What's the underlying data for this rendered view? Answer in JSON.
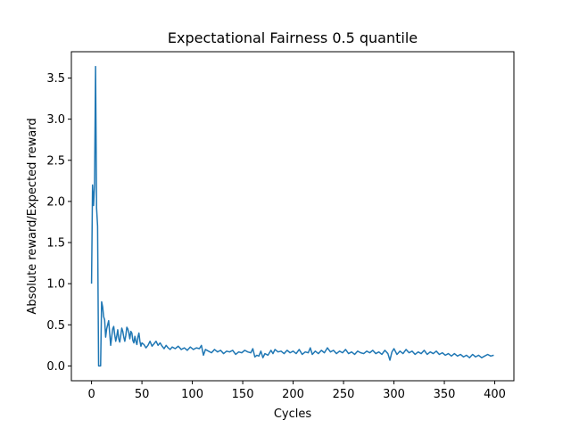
{
  "chart_data": {
    "type": "line",
    "title": "Expectational Fairness 0.5 quantile",
    "xlabel": "Cycles",
    "ylabel": "Absolute reward/Expected reward",
    "xlim": [
      -20,
      419
    ],
    "ylim": [
      -0.18,
      3.82
    ],
    "xticks": [
      0,
      50,
      100,
      150,
      200,
      250,
      300,
      350,
      400
    ],
    "yticks": [
      0.0,
      0.5,
      1.0,
      1.5,
      2.0,
      2.5,
      3.0,
      3.5
    ],
    "grid": false,
    "series_color": "#1f77b4",
    "series": [
      {
        "values": [
          [
            0,
            1.0
          ],
          [
            1,
            2.2
          ],
          [
            2,
            1.95
          ],
          [
            3,
            2.2
          ],
          [
            4,
            3.64
          ],
          [
            5,
            1.92
          ],
          [
            6,
            1.7
          ],
          [
            7,
            0.0
          ],
          [
            8,
            0.0
          ],
          [
            9,
            0.0
          ],
          [
            10,
            0.78
          ],
          [
            11,
            0.72
          ],
          [
            12,
            0.6
          ],
          [
            13,
            0.56
          ],
          [
            14,
            0.35
          ],
          [
            15,
            0.45
          ],
          [
            16,
            0.5
          ],
          [
            17,
            0.55
          ],
          [
            18,
            0.4
          ],
          [
            19,
            0.25
          ],
          [
            20,
            0.35
          ],
          [
            21,
            0.45
          ],
          [
            22,
            0.48
          ],
          [
            23,
            0.38
          ],
          [
            24,
            0.3
          ],
          [
            25,
            0.36
          ],
          [
            26,
            0.44
          ],
          [
            27,
            0.33
          ],
          [
            28,
            0.29
          ],
          [
            29,
            0.37
          ],
          [
            30,
            0.46
          ],
          [
            31,
            0.42
          ],
          [
            32,
            0.35
          ],
          [
            33,
            0.3
          ],
          [
            34,
            0.37
          ],
          [
            35,
            0.47
          ],
          [
            36,
            0.45
          ],
          [
            37,
            0.4
          ],
          [
            38,
            0.33
          ],
          [
            39,
            0.42
          ],
          [
            40,
            0.4
          ],
          [
            41,
            0.31
          ],
          [
            42,
            0.28
          ],
          [
            43,
            0.36
          ],
          [
            44,
            0.3
          ],
          [
            45,
            0.26
          ],
          [
            46,
            0.35
          ],
          [
            47,
            0.4
          ],
          [
            48,
            0.3
          ],
          [
            49,
            0.24
          ],
          [
            50,
            0.28
          ],
          [
            52,
            0.26
          ],
          [
            54,
            0.22
          ],
          [
            56,
            0.25
          ],
          [
            58,
            0.3
          ],
          [
            60,
            0.24
          ],
          [
            62,
            0.27
          ],
          [
            64,
            0.3
          ],
          [
            66,
            0.25
          ],
          [
            68,
            0.28
          ],
          [
            70,
            0.24
          ],
          [
            72,
            0.21
          ],
          [
            74,
            0.25
          ],
          [
            76,
            0.22
          ],
          [
            78,
            0.2
          ],
          [
            80,
            0.23
          ],
          [
            83,
            0.21
          ],
          [
            86,
            0.24
          ],
          [
            89,
            0.2
          ],
          [
            92,
            0.22
          ],
          [
            95,
            0.19
          ],
          [
            98,
            0.23
          ],
          [
            101,
            0.2
          ],
          [
            104,
            0.22
          ],
          [
            107,
            0.21
          ],
          [
            109,
            0.25
          ],
          [
            111,
            0.13
          ],
          [
            113,
            0.2
          ],
          [
            116,
            0.18
          ],
          [
            119,
            0.16
          ],
          [
            122,
            0.2
          ],
          [
            125,
            0.17
          ],
          [
            128,
            0.19
          ],
          [
            131,
            0.15
          ],
          [
            134,
            0.18
          ],
          [
            137,
            0.17
          ],
          [
            140,
            0.19
          ],
          [
            143,
            0.14
          ],
          [
            146,
            0.17
          ],
          [
            149,
            0.16
          ],
          [
            152,
            0.19
          ],
          [
            155,
            0.17
          ],
          [
            158,
            0.16
          ],
          [
            160,
            0.21
          ],
          [
            162,
            0.11
          ],
          [
            164,
            0.13
          ],
          [
            166,
            0.12
          ],
          [
            168,
            0.18
          ],
          [
            170,
            0.1
          ],
          [
            172,
            0.15
          ],
          [
            175,
            0.13
          ],
          [
            178,
            0.19
          ],
          [
            180,
            0.15
          ],
          [
            182,
            0.2
          ],
          [
            185,
            0.17
          ],
          [
            188,
            0.18
          ],
          [
            191,
            0.15
          ],
          [
            194,
            0.19
          ],
          [
            197,
            0.16
          ],
          [
            200,
            0.18
          ],
          [
            203,
            0.15
          ],
          [
            206,
            0.2
          ],
          [
            209,
            0.14
          ],
          [
            212,
            0.17
          ],
          [
            215,
            0.16
          ],
          [
            217,
            0.22
          ],
          [
            219,
            0.14
          ],
          [
            222,
            0.18
          ],
          [
            225,
            0.15
          ],
          [
            228,
            0.19
          ],
          [
            231,
            0.16
          ],
          [
            234,
            0.22
          ],
          [
            237,
            0.17
          ],
          [
            240,
            0.19
          ],
          [
            243,
            0.15
          ],
          [
            246,
            0.18
          ],
          [
            249,
            0.16
          ],
          [
            252,
            0.2
          ],
          [
            255,
            0.15
          ],
          [
            258,
            0.17
          ],
          [
            261,
            0.14
          ],
          [
            264,
            0.18
          ],
          [
            267,
            0.16
          ],
          [
            270,
            0.15
          ],
          [
            273,
            0.18
          ],
          [
            276,
            0.16
          ],
          [
            279,
            0.19
          ],
          [
            282,
            0.15
          ],
          [
            285,
            0.17
          ],
          [
            288,
            0.14
          ],
          [
            291,
            0.19
          ],
          [
            294,
            0.15
          ],
          [
            296,
            0.07
          ],
          [
            298,
            0.17
          ],
          [
            300,
            0.21
          ],
          [
            303,
            0.14
          ],
          [
            306,
            0.18
          ],
          [
            309,
            0.15
          ],
          [
            312,
            0.2
          ],
          [
            315,
            0.16
          ],
          [
            318,
            0.18
          ],
          [
            321,
            0.14
          ],
          [
            324,
            0.17
          ],
          [
            327,
            0.15
          ],
          [
            330,
            0.19
          ],
          [
            333,
            0.14
          ],
          [
            336,
            0.17
          ],
          [
            339,
            0.15
          ],
          [
            342,
            0.18
          ],
          [
            345,
            0.14
          ],
          [
            348,
            0.16
          ],
          [
            351,
            0.13
          ],
          [
            354,
            0.15
          ],
          [
            357,
            0.12
          ],
          [
            360,
            0.15
          ],
          [
            363,
            0.12
          ],
          [
            366,
            0.14
          ],
          [
            369,
            0.11
          ],
          [
            372,
            0.13
          ],
          [
            375,
            0.1
          ],
          [
            378,
            0.14
          ],
          [
            381,
            0.11
          ],
          [
            384,
            0.13
          ],
          [
            387,
            0.1
          ],
          [
            390,
            0.12
          ],
          [
            393,
            0.14
          ],
          [
            396,
            0.12
          ],
          [
            399,
            0.13
          ]
        ]
      }
    ]
  }
}
